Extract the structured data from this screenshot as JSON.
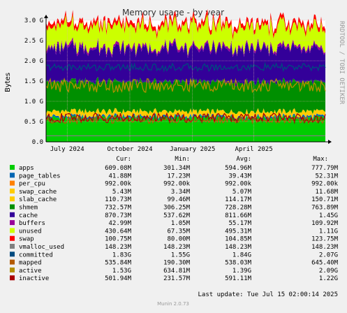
{
  "chart_data": {
    "type": "area",
    "title": "Memory usage - by year",
    "ylabel": "Bytes",
    "side_text": "RRDTOOL / TOBI OETIKER",
    "ylim": [
      0,
      3000000000
    ],
    "y_ticks": [
      {
        "value": 0,
        "label": "0.0"
      },
      {
        "value": 500000000,
        "label": "0.5 G"
      },
      {
        "value": 1000000000,
        "label": "1.0 G"
      },
      {
        "value": 1500000000,
        "label": "1.5 G"
      },
      {
        "value": 2000000000,
        "label": "2.0 G"
      },
      {
        "value": 2500000000,
        "label": "2.5 G"
      },
      {
        "value": 3000000000,
        "label": "3.0 G"
      }
    ],
    "x_range": [
      "2024-05-31",
      "2025-07-15"
    ],
    "x_ticks": [
      {
        "date": "2024-07-01",
        "label": "July 2024"
      },
      {
        "date": "2024-10-01",
        "label": "October 2024"
      },
      {
        "date": "2025-01-01",
        "label": "January 2025"
      },
      {
        "date": "2025-04-01",
        "label": "April 2025"
      }
    ],
    "stack_mean_bytes": {
      "apps": 595000000,
      "page_tables": 39430000,
      "per_cpu": 992000,
      "swap_cache": 5070000,
      "slab_cache": 114170000,
      "shmem": 728280000,
      "cache": 811660000,
      "buffers": 55170000,
      "unused": 495310000,
      "swap": 104850000
    },
    "line_mean_bytes": {
      "vmalloc_used": 148230000,
      "committed": 1840000000,
      "mapped": 538030000,
      "active": 1390000000,
      "inactive": 591110000
    },
    "legend_headers": {
      "cur": "Cur:",
      "min": "Min:",
      "avg": "Avg:",
      "max": "Max:"
    },
    "legend": [
      {
        "name": "apps",
        "color": "#00cc00",
        "cur": "609.08M",
        "min": "301.34M",
        "avg": "594.96M",
        "max": "777.79M"
      },
      {
        "name": "page_tables",
        "color": "#0066b3",
        "cur": "41.88M",
        "min": "17.23M",
        "avg": "39.43M",
        "max": "52.31M"
      },
      {
        "name": "per_cpu",
        "color": "#ff8000",
        "cur": "992.00k",
        "min": "992.00k",
        "avg": "992.00k",
        "max": "992.00k"
      },
      {
        "name": "swap_cache",
        "color": "#ffcc00",
        "cur": "5.43M",
        "min": "3.34M",
        "avg": "5.07M",
        "max": "11.68M"
      },
      {
        "name": "slab_cache",
        "color": "#ffcc00",
        "cur": "110.73M",
        "min": "99.46M",
        "avg": "114.17M",
        "max": "150.71M"
      },
      {
        "name": "shmem",
        "color": "#008f00",
        "cur": "732.57M",
        "min": "306.25M",
        "avg": "728.28M",
        "max": "763.89M"
      },
      {
        "name": "cache",
        "color": "#330099",
        "cur": "870.73M",
        "min": "537.62M",
        "avg": "811.66M",
        "max": "1.45G"
      },
      {
        "name": "buffers",
        "color": "#990099",
        "cur": "42.99M",
        "min": "1.05M",
        "avg": "55.17M",
        "max": "109.92M"
      },
      {
        "name": "unused",
        "color": "#ccff00",
        "cur": "430.64M",
        "min": "67.35M",
        "avg": "495.31M",
        "max": "1.11G"
      },
      {
        "name": "swap",
        "color": "#ff0000",
        "cur": "100.75M",
        "min": "80.00M",
        "avg": "104.85M",
        "max": "123.75M"
      },
      {
        "name": "vmalloc_used",
        "color": "#808080",
        "cur": "148.23M",
        "min": "148.23M",
        "avg": "148.23M",
        "max": "148.23M"
      },
      {
        "name": "committed",
        "color": "#004a7f",
        "cur": "1.83G",
        "min": "1.55G",
        "avg": "1.84G",
        "max": "2.07G"
      },
      {
        "name": "mapped",
        "color": "#b35a00",
        "cur": "535.84M",
        "min": "190.30M",
        "avg": "538.03M",
        "max": "645.40M"
      },
      {
        "name": "active",
        "color": "#b38f00",
        "cur": "1.53G",
        "min": "634.81M",
        "avg": "1.39G",
        "max": "2.09G"
      },
      {
        "name": "inactive",
        "color": "#aa0000",
        "cur": "501.94M",
        "min": "231.57M",
        "avg": "591.11M",
        "max": "1.22G"
      }
    ],
    "last_update": "Last update: Tue Jul 15 02:00:14 2025",
    "footer": "Munin 2.0.73"
  },
  "colors": {
    "background": "#f0f0f0",
    "plot_background": "#ffffff",
    "grid": "#e0b0b0",
    "axis": "#000000",
    "text": "#000000",
    "muted_text": "#999999"
  }
}
